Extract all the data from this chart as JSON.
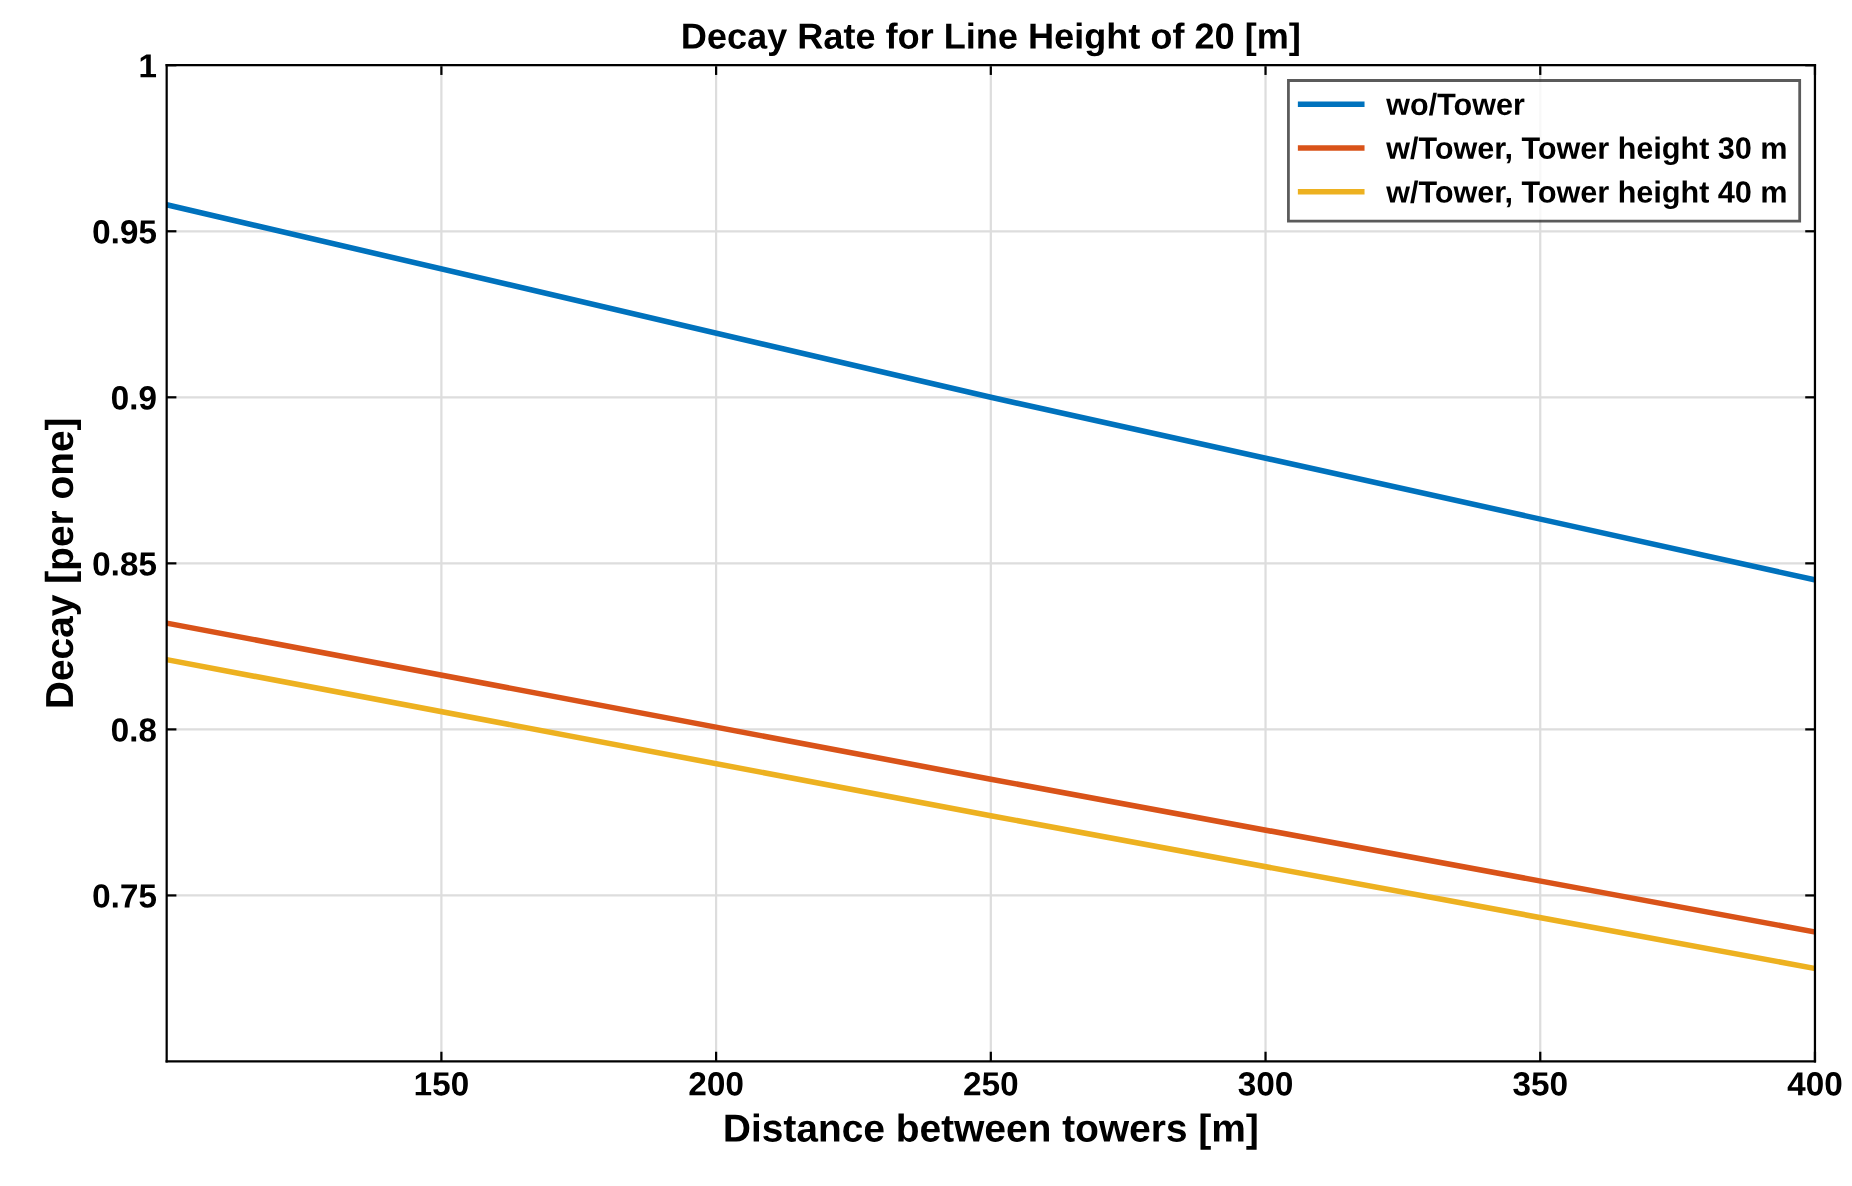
{
  "chart_data": {
    "type": "line",
    "title": "Decay Rate for Line Height of 20 [m]",
    "xlabel": "Distance between towers [m]",
    "ylabel": "Decay [per one]",
    "x": [
      100,
      250,
      400
    ],
    "series": [
      {
        "name": "wo/Tower",
        "color": "#0072bd",
        "values": [
          0.958,
          0.9,
          0.845
        ]
      },
      {
        "name": "w/Tower, Tower height 30 m",
        "color": "#d95319",
        "values": [
          0.832,
          0.785,
          0.739
        ]
      },
      {
        "name": "w/Tower, Tower height 40 m",
        "color": "#edb120",
        "values": [
          0.821,
          0.774,
          0.728
        ]
      }
    ],
    "xlim": [
      100,
      400
    ],
    "xticks": [
      150,
      200,
      250,
      300,
      350,
      400
    ],
    "ylim": [
      0.7,
      1
    ],
    "yticks": [
      0.75,
      0.8,
      0.85,
      0.9,
      0.95,
      1
    ],
    "grid": true,
    "legend": "top right",
    "line_style": "solid",
    "marker": "none"
  }
}
